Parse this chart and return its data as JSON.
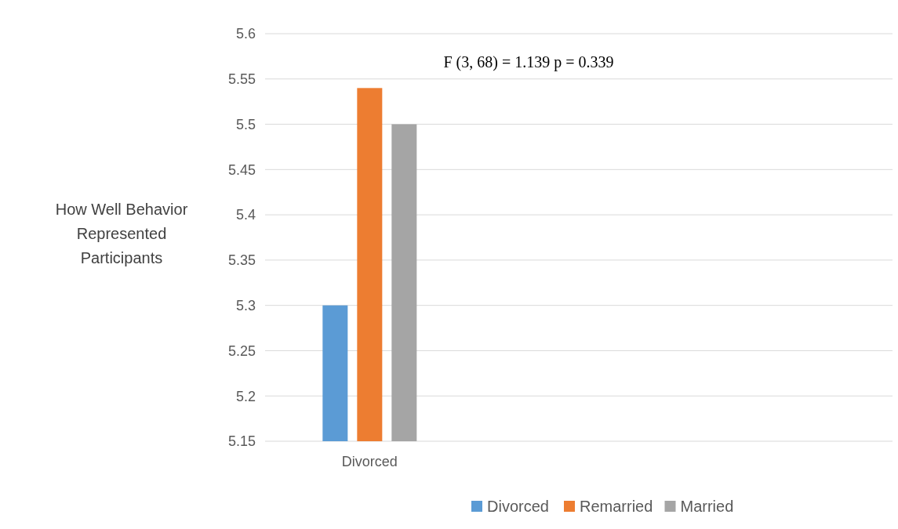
{
  "chart_data": {
    "type": "bar",
    "ylabel": "How Well Behavior Represented Participants",
    "categories": [
      "Divorced",
      null,
      null
    ],
    "series": [
      {
        "name": "Divorced",
        "color": "#5b9bd5",
        "values": [
          5.3,
          null,
          null
        ]
      },
      {
        "name": "Remarried",
        "color": "#ed7d31",
        "values": [
          5.54,
          null,
          null
        ]
      },
      {
        "name": "Married",
        "color": "#a5a5a5",
        "values": [
          5.5,
          null,
          null
        ]
      }
    ],
    "ylim": [
      5.15,
      5.6
    ],
    "yticks": [
      5.15,
      5.2,
      5.25,
      5.3,
      5.35,
      5.4,
      5.45,
      5.5,
      5.55,
      5.6
    ],
    "grid": "y",
    "legend": "bottom",
    "annotations": [
      "F (3, 68) = 1.139 p = 0.339"
    ]
  }
}
